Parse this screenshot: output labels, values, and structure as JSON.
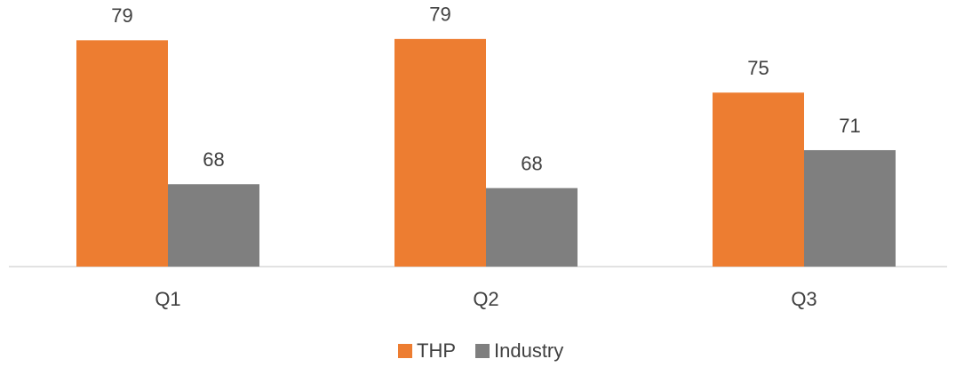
{
  "chart_data": {
    "type": "bar",
    "categories": [
      "Q1",
      "Q2",
      "Q3"
    ],
    "series": [
      {
        "name": "THP",
        "color": "#ed7d31",
        "values": [
          79,
          79.1,
          75
        ],
        "value_labels": [
          "79",
          "79",
          "75"
        ]
      },
      {
        "name": "Industry",
        "color": "#7f7f7f",
        "values": [
          68,
          67.7,
          70.6
        ],
        "value_labels": [
          "68",
          "68",
          "71"
        ]
      }
    ],
    "ylim": [
      61.7,
      81.4
    ],
    "grid": false,
    "legend": "bottom"
  }
}
